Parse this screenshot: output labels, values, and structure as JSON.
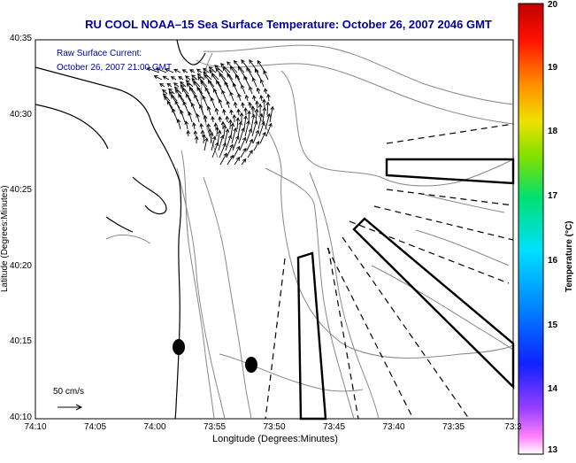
{
  "title": "RU COOL  NOAA–15  Sea Surface Temperature:  October 26, 2007 2046 GMT",
  "annotation": {
    "line1": "Raw Surface Current:",
    "line2": "October 26, 2007 21:00 GMT"
  },
  "scale": {
    "label": "50 cm/s"
  },
  "axes": {
    "xlabel": "Longitude (Degrees:Minutes)",
    "ylabel": "Latitude (Degrees:Minutes)",
    "xticks": [
      "74:10",
      "74:05",
      "74:00",
      "73:55",
      "73:50",
      "73:45",
      "73:40",
      "73:35",
      "73:3"
    ],
    "yticks": [
      "40:35",
      "40:30",
      "40:25",
      "40:20",
      "40:15",
      "40:10"
    ]
  },
  "colorbar": {
    "label": "Temperature (°C)",
    "ticks": [
      "20",
      "19",
      "18",
      "17",
      "16",
      "15",
      "14",
      "13"
    ],
    "range": [
      13,
      20
    ]
  },
  "colors": {
    "title": "#0000a0",
    "contour": "#888888",
    "coast": "#000000",
    "vectors": "#000000"
  }
}
